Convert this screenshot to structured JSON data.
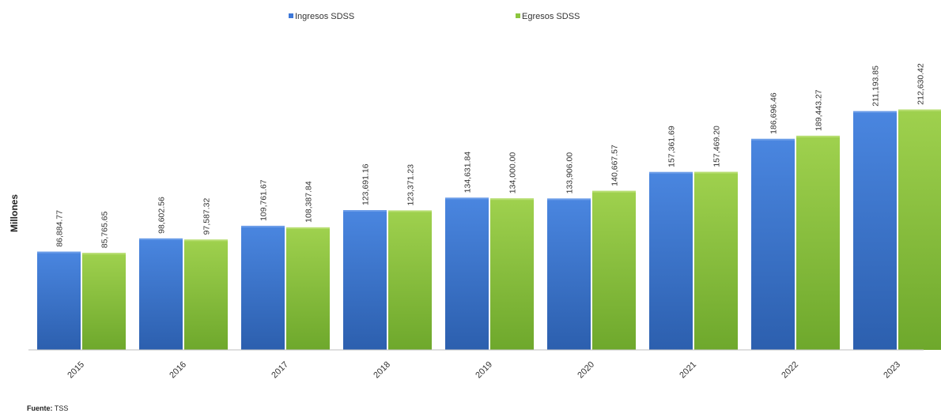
{
  "chart_data": {
    "type": "bar",
    "title": "",
    "xlabel": "",
    "ylabel": "Millones",
    "ylim": [
      0,
      220000
    ],
    "grid": false,
    "legend_position": "top-center",
    "categories": [
      "2015",
      "2016",
      "2017",
      "2018",
      "2019",
      "2020",
      "2021",
      "2022",
      "2023"
    ],
    "series": [
      {
        "name": "Ingresos SDSS",
        "color": "#3d78d8",
        "values": [
          86884.77,
          98602.56,
          109761.67,
          123691.16,
          134631.84,
          133906.0,
          157361.69,
          186696.46,
          211193.85
        ],
        "labels": [
          "86,884.77",
          "98,602.56",
          "109,761.67",
          "123,691.16",
          "134,631.84",
          "133,906.00",
          "157,361.69",
          "186,696.46",
          "211,193.85"
        ]
      },
      {
        "name": "Egresos SDSS",
        "color": "#8cc63e",
        "values": [
          85765.65,
          97587.32,
          108387.84,
          123371.23,
          134000.0,
          140667.57,
          157469.2,
          189443.27,
          212630.42
        ],
        "labels": [
          "85,765.65",
          "97,587.32",
          "108,387.84",
          "123,371.23",
          "134,000.00",
          "140,667.57",
          "157,469.20",
          "189,443.27",
          "212,630.42"
        ]
      }
    ]
  },
  "source": {
    "label": "Fuente:",
    "value": "TSS"
  }
}
